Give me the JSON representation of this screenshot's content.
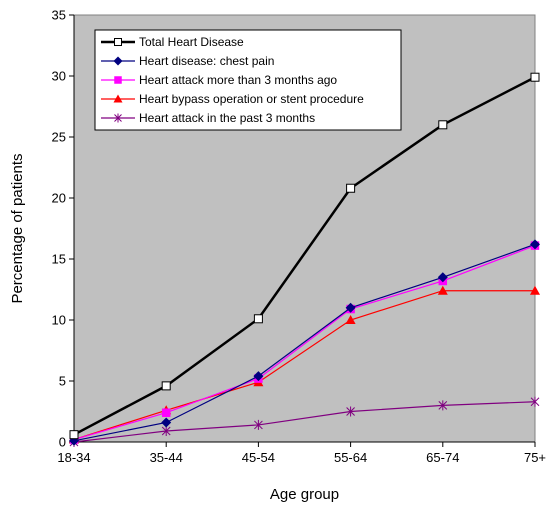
{
  "chart_data": {
    "type": "line",
    "title": "",
    "xlabel": "Age group",
    "ylabel": "Percentage of patients",
    "categories": [
      "18-34",
      "35-44",
      "45-54",
      "55-64",
      "65-74",
      "75+"
    ],
    "ylim": [
      0,
      35
    ],
    "yticks": [
      0,
      5,
      10,
      15,
      20,
      25,
      30,
      35
    ],
    "grid": false,
    "legend": "top-left",
    "plot_background": "#c0c0c0",
    "series": [
      {
        "name": "Total Heart Disease",
        "values": [
          0.6,
          4.6,
          10.1,
          20.8,
          26.0,
          29.9
        ],
        "color": "#000000",
        "marker": "open-square"
      },
      {
        "name": "Heart disease: chest pain",
        "values": [
          0.1,
          1.6,
          5.4,
          11.0,
          13.5,
          16.2
        ],
        "color": "#000080",
        "marker": "diamond"
      },
      {
        "name": "Heart attack more than 3 months ago",
        "values": [
          0.2,
          2.4,
          5.2,
          10.9,
          13.2,
          16.1
        ],
        "color": "#ff00ff",
        "marker": "square"
      },
      {
        "name": "Heart bypass operation or stent procedure",
        "values": [
          0.2,
          2.6,
          4.9,
          10.0,
          12.4,
          12.4
        ],
        "color": "#ff0000",
        "marker": "triangle"
      },
      {
        "name": "Heart attack in the past 3 months",
        "values": [
          0.0,
          0.9,
          1.4,
          2.5,
          3.0,
          3.3
        ],
        "color": "#800080",
        "marker": "asterisk"
      }
    ]
  }
}
